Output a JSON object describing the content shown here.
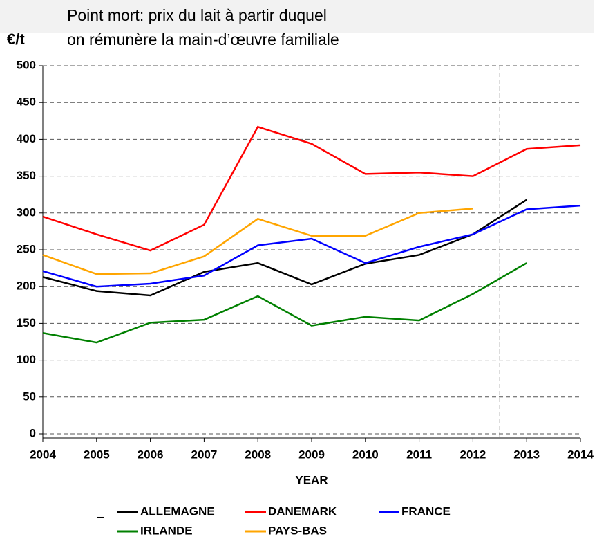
{
  "chart_data": {
    "type": "line",
    "title": [
      "Point mort: prix du lait à partir duquel",
      "on rémunère la main-d’œuvre familiale"
    ],
    "ylabel": "€/t",
    "xlabel": "YEAR",
    "x": [
      2004,
      2005,
      2006,
      2007,
      2008,
      2009,
      2010,
      2011,
      2012,
      2013,
      2014
    ],
    "series": [
      {
        "name": "ALLEMAGNE",
        "color": "#000000",
        "values": [
          213,
          194,
          188,
          220,
          232,
          203,
          231,
          243,
          271,
          318,
          null
        ]
      },
      {
        "name": "DANEMARK",
        "color": "#ff0000",
        "values": [
          295,
          271,
          249,
          284,
          417,
          394,
          353,
          355,
          350,
          387,
          392
        ]
      },
      {
        "name": "FRANCE",
        "color": "#0000ff",
        "values": [
          221,
          200,
          204,
          215,
          256,
          265,
          232,
          254,
          271,
          305,
          310
        ]
      },
      {
        "name": "IRLANDE",
        "color": "#008000",
        "values": [
          137,
          124,
          151,
          155,
          187,
          147,
          159,
          154,
          190,
          232,
          null
        ]
      },
      {
        "name": "PAYS-BAS",
        "color": "#ffa500",
        "values": [
          243,
          217,
          218,
          241,
          292,
          269,
          269,
          300,
          306,
          null,
          null
        ]
      }
    ],
    "legend_prefix": "–",
    "xlim": [
      2004,
      2014
    ],
    "xticks": [
      2004,
      2005,
      2006,
      2007,
      2008,
      2009,
      2010,
      2011,
      2012,
      2013,
      2014
    ],
    "ylim": [
      0,
      500
    ],
    "yticks": [
      0,
      50,
      100,
      150,
      200,
      250,
      300,
      350,
      400,
      450,
      500
    ],
    "grid": true
  }
}
